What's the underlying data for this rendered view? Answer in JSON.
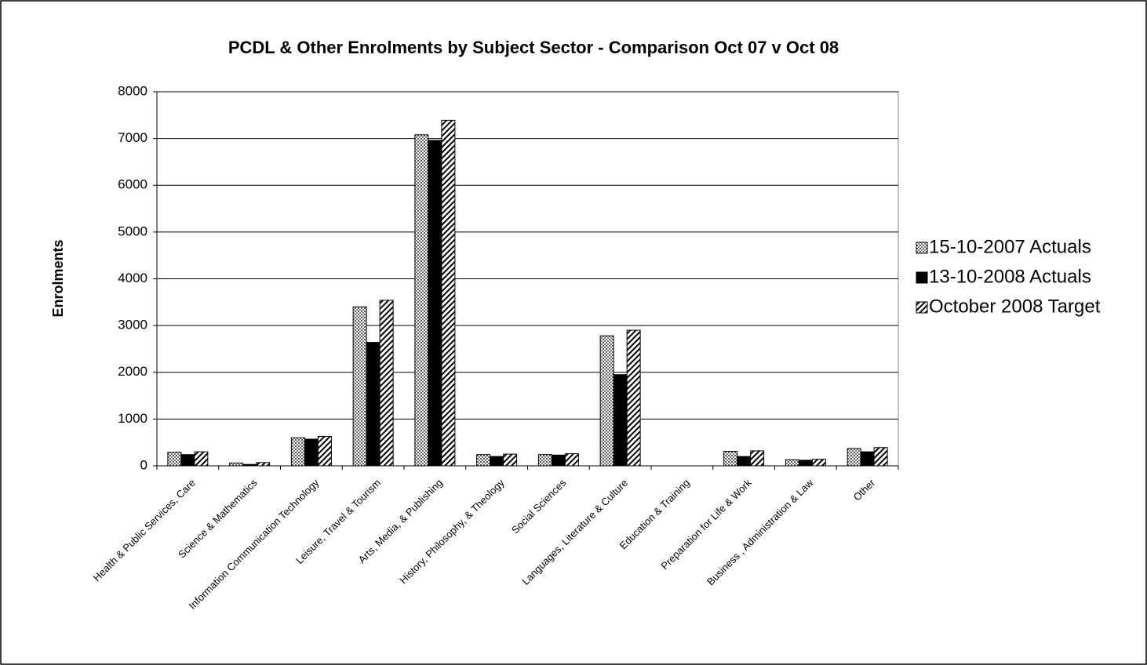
{
  "chart_data": {
    "type": "bar",
    "title": "PCDL & Other Enrolments by Subject Sector - Comparison Oct 07 v Oct 08",
    "y_label": "Enrolments",
    "categories": [
      "Health & Public Services, Care",
      "Science & Mathematics",
      "Information Communication Technology",
      "Leisure, Travel & Tourism",
      "Arts, Media, & Publishing",
      "History, Philosophy, & Theology",
      "Social Sciences",
      "Languages, Literature & Culture",
      "Education & Training",
      "Preparation for Life & Work",
      "Business , Administration & Law",
      "Other"
    ],
    "series": [
      {
        "name": "15-10-2007 Actuals",
        "color": "#a0a0a0",
        "pattern": "dots",
        "values": [
          290,
          60,
          600,
          3400,
          7080,
          240,
          240,
          2780,
          0,
          310,
          130,
          370
        ]
      },
      {
        "name": "13-10-2008 Actuals",
        "color": "#000000",
        "pattern": "solid",
        "values": [
          240,
          30,
          570,
          2640,
          6960,
          200,
          230,
          1950,
          0,
          200,
          120,
          300
        ]
      },
      {
        "name": "October 2008 Target",
        "color": "#000000",
        "pattern": "hatch",
        "values": [
          300,
          70,
          630,
          3540,
          7390,
          250,
          260,
          2900,
          0,
          320,
          140,
          390
        ]
      }
    ],
    "ylim": [
      0,
      8000
    ],
    "yticks": [
      0,
      1000,
      2000,
      3000,
      4000,
      5000,
      6000,
      7000,
      8000
    ],
    "grid": true,
    "legend": "right"
  }
}
